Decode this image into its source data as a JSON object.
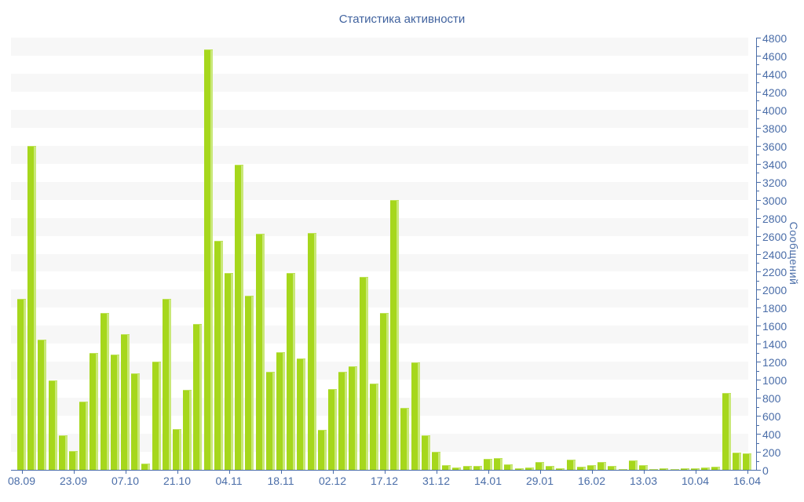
{
  "chart_data": {
    "type": "bar",
    "title": "Статистика активности",
    "ylabel": "Сообщений",
    "xlabel": "",
    "ylim": [
      0,
      4800
    ],
    "y_tick_step": 200,
    "y_minor_tick_step": 100,
    "legend": "none",
    "grid": "horizontal-stripes",
    "bar_color": "#a6d71c",
    "bar_edge_color": "#c9e878",
    "stripe_color": "#f7f7f7",
    "axis_color": "#4a6da8",
    "text_color": "#4a6da8",
    "categories": [
      "08.09",
      "",
      "",
      "",
      "",
      "23.09",
      "",
      "",
      "",
      "",
      "07.10",
      "",
      "",
      "",
      "",
      "21.10",
      "",
      "",
      "",
      "",
      "04.11",
      "",
      "",
      "",
      "",
      "18.11",
      "",
      "",
      "",
      "",
      "02.12",
      "",
      "",
      "",
      "",
      "17.12",
      "",
      "",
      "",
      "",
      "31.12",
      "",
      "",
      "",
      "",
      "14.01",
      "",
      "",
      "",
      "",
      "29.01",
      "",
      "",
      "",
      "",
      "16.02",
      "",
      "",
      "",
      "",
      "13.03",
      "",
      "",
      "",
      "",
      "10.04",
      "",
      "",
      "",
      "",
      "16.04"
    ],
    "values": [
      1900,
      3600,
      1450,
      990,
      380,
      210,
      760,
      1300,
      1740,
      1280,
      1510,
      1070,
      70,
      1200,
      1900,
      450,
      890,
      1620,
      4670,
      2540,
      2190,
      3390,
      1930,
      2620,
      1090,
      1310,
      2190,
      1240,
      2630,
      440,
      900,
      1090,
      1150,
      2140,
      960,
      1740,
      3000,
      690,
      1190,
      380,
      200,
      55,
      25,
      45,
      40,
      120,
      130,
      60,
      20,
      25,
      90,
      40,
      15,
      110,
      35,
      50,
      85,
      40,
      12,
      105,
      50,
      10,
      18,
      12,
      15,
      20,
      30,
      35,
      850,
      190,
      180
    ]
  }
}
